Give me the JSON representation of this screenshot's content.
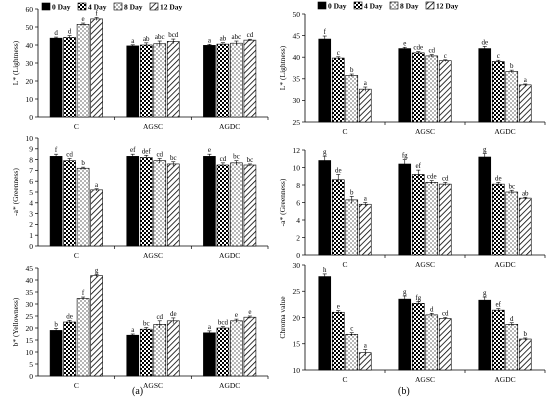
{
  "figure": {
    "label_a": "(a)",
    "label_b": "(b)"
  },
  "series_styles": [
    {
      "name": "0 Day",
      "fill": "solid-black"
    },
    {
      "name": "4 Day",
      "fill": "checker"
    },
    {
      "name": "8 Day",
      "fill": "white-dots"
    },
    {
      "name": "12 Day",
      "fill": "diagonal-hatch"
    }
  ],
  "chart_data": [
    {
      "id": "a1",
      "type": "bar",
      "title": "",
      "xlabel": "",
      "ylabel": "L* (Lightness)",
      "ylim": [
        0,
        60
      ],
      "yticks": [
        0,
        10,
        20,
        30,
        40,
        50,
        60
      ],
      "grid": false,
      "legend": "top",
      "categories": [
        "C",
        "AGSC",
        "AGDC"
      ],
      "series": [
        {
          "name": "0 Day",
          "values": [
            43.8,
            39.5,
            39.8
          ],
          "errors": [
            0.6,
            0.6,
            0.6
          ],
          "letters": [
            "d",
            "a",
            "a"
          ]
        },
        {
          "name": "4 Day",
          "values": [
            44.2,
            40.0,
            40.5
          ],
          "errors": [
            1.0,
            1.2,
            0.8
          ],
          "letters": [
            "d",
            "ab",
            "ab"
          ]
        },
        {
          "name": "8 Day",
          "values": [
            51.5,
            40.7,
            41.0
          ],
          "errors": [
            0.7,
            1.5,
            1.2
          ],
          "letters": [
            "e",
            "abc",
            "abc"
          ]
        },
        {
          "name": "12 Day",
          "values": [
            54.5,
            42.0,
            42.7
          ],
          "errors": [
            0.8,
            1.3,
            0.5
          ],
          "letters": [
            "f",
            "bcd",
            "cd"
          ]
        }
      ]
    },
    {
      "id": "a2",
      "type": "bar",
      "title": "",
      "xlabel": "",
      "ylabel": "-a* (Greenness)",
      "ylim": [
        0,
        10
      ],
      "yticks": [
        0,
        1,
        2,
        3,
        4,
        5,
        6,
        7,
        8,
        9,
        10
      ],
      "grid": false,
      "categories": [
        "C",
        "AGSC",
        "AGDC"
      ],
      "series": [
        {
          "name": "0 Day",
          "values": [
            8.3,
            8.3,
            8.3
          ],
          "errors": [
            0.2,
            0.2,
            0.2
          ],
          "letters": [
            "f",
            "ef",
            "e"
          ]
        },
        {
          "name": "4 Day",
          "values": [
            7.9,
            8.2,
            7.5
          ],
          "errors": [
            0.2,
            0.2,
            0.2
          ],
          "letters": [
            "cd",
            "def",
            "cd"
          ]
        },
        {
          "name": "8 Day",
          "values": [
            7.2,
            7.9,
            7.7
          ],
          "errors": [
            0.1,
            0.2,
            0.2
          ],
          "letters": [
            "b",
            "cd",
            "bc"
          ]
        },
        {
          "name": "12 Day",
          "values": [
            5.2,
            7.6,
            7.5
          ],
          "errors": [
            0.1,
            0.2,
            0.1
          ],
          "letters": [
            "a",
            "bc",
            "bc"
          ]
        }
      ]
    },
    {
      "id": "a3",
      "type": "bar",
      "title": "",
      "xlabel": "",
      "ylabel": "b* (Yellowness)",
      "ylim": [
        0,
        45
      ],
      "yticks": [
        0,
        5,
        10,
        15,
        20,
        25,
        30,
        35,
        40,
        45
      ],
      "grid": false,
      "categories": [
        "C",
        "AGSC",
        "AGDC"
      ],
      "series": [
        {
          "name": "0 Day",
          "values": [
            19.0,
            17.0,
            18.0
          ],
          "errors": [
            0.8,
            0.5,
            0.8
          ],
          "letters": [
            "b",
            "a",
            "a"
          ]
        },
        {
          "name": "4 Day",
          "values": [
            22.5,
            19.5,
            20.0
          ],
          "errors": [
            0.7,
            0.7,
            0.6
          ],
          "letters": [
            "de",
            "bc",
            "bcd"
          ]
        },
        {
          "name": "8 Day",
          "values": [
            32.3,
            21.5,
            23.0
          ],
          "errors": [
            0.6,
            1.5,
            0.7
          ],
          "letters": [
            "f",
            "cd",
            "e"
          ]
        },
        {
          "name": "12 Day",
          "values": [
            41.8,
            23.0,
            24.5
          ],
          "errors": [
            0.5,
            1.2,
            0.5
          ],
          "letters": [
            "g",
            "de",
            "e"
          ]
        }
      ]
    },
    {
      "id": "b1",
      "type": "bar",
      "title": "",
      "xlabel": "",
      "ylabel": "L* (Lightness)",
      "ylim": [
        25,
        50
      ],
      "yticks": [
        25,
        30,
        35,
        40,
        45,
        50
      ],
      "grid": false,
      "legend": "top",
      "categories": [
        "C",
        "AGSC",
        "AGDC"
      ],
      "series": [
        {
          "name": "0 Day",
          "values": [
            44.2,
            42.0,
            42.0
          ],
          "errors": [
            0.7,
            0.3,
            0.5
          ],
          "letters": [
            "f",
            "e",
            "de"
          ]
        },
        {
          "name": "4 Day",
          "values": [
            39.8,
            41.0,
            39.0
          ],
          "errors": [
            0.3,
            0.3,
            0.3
          ],
          "letters": [
            "c",
            "cde",
            "c"
          ]
        },
        {
          "name": "8 Day",
          "values": [
            35.8,
            40.3,
            36.7
          ],
          "errors": [
            0.3,
            0.3,
            0.3
          ],
          "letters": [
            "b",
            "cd",
            "b"
          ]
        },
        {
          "name": "12 Day",
          "values": [
            32.6,
            39.2,
            33.6
          ],
          "errors": [
            0.5,
            0.2,
            0.2
          ],
          "letters": [
            "a",
            "c",
            "a"
          ]
        }
      ]
    },
    {
      "id": "b2",
      "type": "bar",
      "title": "",
      "xlabel": "",
      "ylabel": "-a* (Greenness)",
      "ylim": [
        0,
        12
      ],
      "yticks": [
        0,
        2,
        4,
        6,
        8,
        10,
        12
      ],
      "grid": false,
      "categories": [
        "C",
        "AGSC",
        "AGDC"
      ],
      "series": [
        {
          "name": "0 Day",
          "values": [
            10.8,
            10.4,
            11.2
          ],
          "errors": [
            0.5,
            0.5,
            0.4
          ],
          "letters": [
            "g",
            "fg",
            "g"
          ]
        },
        {
          "name": "4 Day",
          "values": [
            8.6,
            9.2,
            8.1
          ],
          "errors": [
            0.6,
            0.5,
            0.2
          ],
          "letters": [
            "de",
            "ef",
            "de"
          ]
        },
        {
          "name": "8 Day",
          "values": [
            6.3,
            8.3,
            7.2
          ],
          "errors": [
            0.4,
            0.2,
            0.2
          ],
          "letters": [
            "b",
            "cde",
            "bc"
          ]
        },
        {
          "name": "12 Day",
          "values": [
            5.8,
            8.1,
            6.5
          ],
          "errors": [
            0.2,
            0.2,
            0.1
          ],
          "letters": [
            "a",
            "cd",
            "ab"
          ]
        }
      ]
    },
    {
      "id": "b3",
      "type": "bar",
      "title": "",
      "xlabel": "",
      "ylabel": "Chroma value",
      "ylim": [
        10,
        30
      ],
      "yticks": [
        10,
        15,
        20,
        25,
        30
      ],
      "grid": false,
      "categories": [
        "C",
        "AGSC",
        "AGDC"
      ],
      "series": [
        {
          "name": "0 Day",
          "values": [
            27.8,
            23.5,
            23.3
          ],
          "errors": [
            0.5,
            0.6,
            0.6
          ],
          "letters": [
            "h",
            "g",
            "g"
          ]
        },
        {
          "name": "4 Day",
          "values": [
            21.0,
            22.7,
            21.4
          ],
          "errors": [
            0.3,
            0.3,
            0.3
          ],
          "letters": [
            "e",
            "fg",
            "ef"
          ]
        },
        {
          "name": "8 Day",
          "values": [
            16.8,
            20.5,
            18.7
          ],
          "errors": [
            0.3,
            0.3,
            0.3
          ],
          "letters": [
            "c",
            "d",
            "d"
          ]
        },
        {
          "name": "12 Day",
          "values": [
            13.3,
            19.8,
            15.9
          ],
          "errors": [
            0.6,
            0.2,
            0.2
          ],
          "letters": [
            "a",
            "cd",
            "b"
          ]
        }
      ]
    }
  ]
}
